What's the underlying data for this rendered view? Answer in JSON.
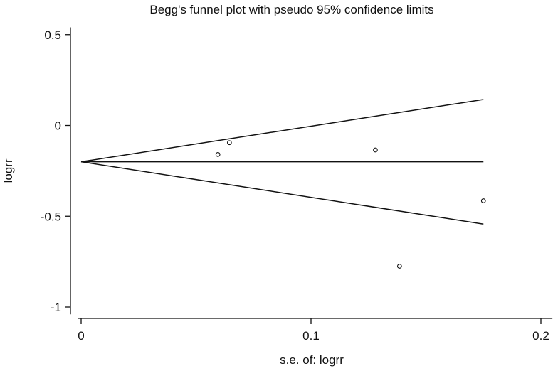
{
  "chart_data": {
    "type": "scatter",
    "title": "Begg's funnel plot with pseudo 95% confidence limits",
    "xlabel": "s.e. of: logrr",
    "ylabel": "logrr",
    "xlim": [
      0,
      0.205
    ],
    "ylim": [
      -1.04,
      0.54
    ],
    "x_ticks": [
      0,
      0.1,
      0.2
    ],
    "x_tick_labels": [
      "0",
      "0.1",
      "0.2"
    ],
    "y_ticks": [
      0.5,
      0,
      -0.5,
      -1
    ],
    "y_tick_labels": [
      "0.5",
      "0",
      "-0.5",
      "-1"
    ],
    "grid": false,
    "legend": "none",
    "pooled_estimate": -0.2,
    "max_se": 0.175,
    "points": [
      {
        "x": 0.0595,
        "y": -0.16
      },
      {
        "x": 0.0645,
        "y": -0.095
      },
      {
        "x": 0.128,
        "y": -0.135
      },
      {
        "x": 0.1385,
        "y": -0.775
      },
      {
        "x": 0.175,
        "y": -0.415
      }
    ]
  }
}
